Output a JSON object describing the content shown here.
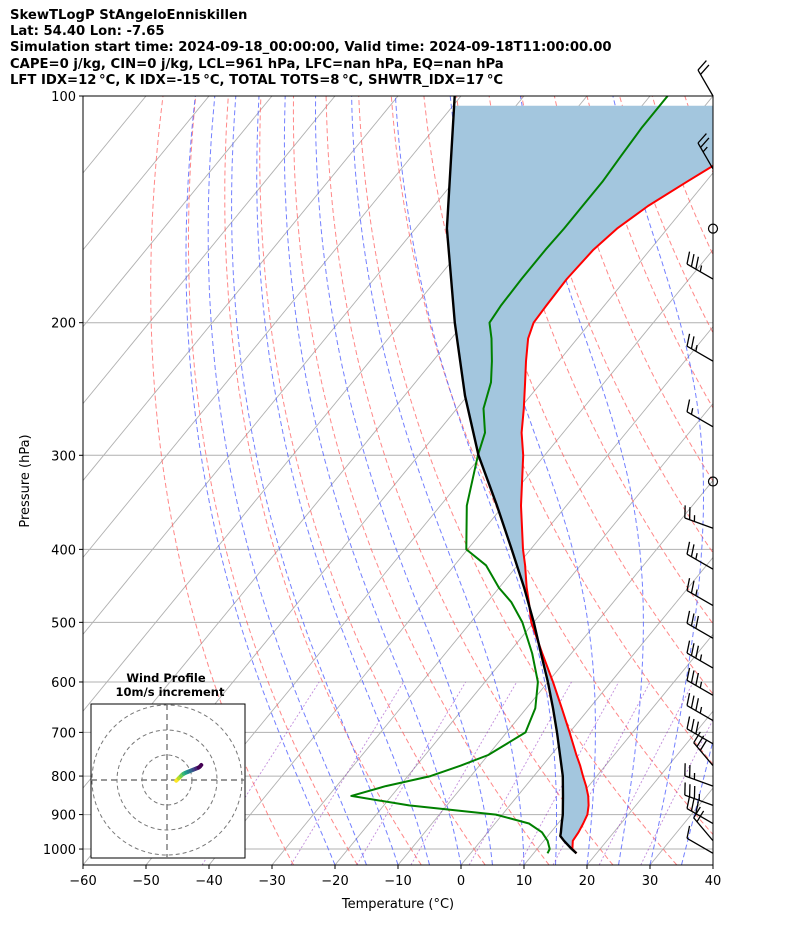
{
  "header": {
    "lines": [
      "SkewTLogP StAngeloEnniskillen",
      "Lat: 54.40   Lon: -7.65",
      "Simulation start time: 2024-09-18_00:00:00, Valid time: 2024-09-18T11:00:00.00",
      "CAPE=0 j/kg, CIN=0 j/kg, LCL=961 hPa, LFC=nan hPa, EQ=nan hPa",
      "LFT IDX=12$^\\circ$C, K IDX=-15$^\\circ$C, TOTAL TOTS=8$^\\circ$C, SHWTR_IDX=17$^\\circ$C"
    ],
    "display_lines": [
      "SkewTLogP StAngeloEnniskillen",
      "Lat: 54.40   Lon: -7.65",
      "Simulation start time: 2024-09-18_00:00:00, Valid time: 2024-09-18T11:00:00.00",
      "CAPE=0 j/kg, CIN=0 j/kg, LCL=961 hPa, LFC=nan hPa, EQ=nan hPa",
      "LFT IDX=12 °C, K IDX=-15 °C, TOTAL TOTS=8 °C, SHWTR_IDX=17 °C"
    ]
  },
  "chart_data": {
    "type": "line",
    "subtype": "skew-t log-p",
    "xlabel": "Temperature (°C)",
    "ylabel": "Pressure (hPa)",
    "xlim": [
      -60,
      40
    ],
    "ylim": [
      1050,
      100
    ],
    "y_scale": "log",
    "x_ticks": [
      -60,
      -50,
      -40,
      -30,
      -20,
      -10,
      0,
      10,
      20,
      30,
      40
    ],
    "x_tick_labels": [
      "−60",
      "−50",
      "−40",
      "−30",
      "−20",
      "−10",
      "0",
      "10",
      "20",
      "30",
      "40"
    ],
    "y_ticks": [
      1000,
      900,
      800,
      700,
      600,
      500,
      400,
      300,
      200,
      100
    ],
    "y_tick_labels": [
      "1000",
      "900",
      "800",
      "700",
      "600",
      "500",
      "400",
      "300",
      "200",
      "100"
    ],
    "grid": true,
    "colors": {
      "temperature": "#ff0000",
      "dewpoint": "#008000",
      "parcel": "#000000",
      "shading": "#a3c6de",
      "dry_adiabats": "#ff6060",
      "moist_adiabats": "#5060ff",
      "mixing_ratio": "#9030c0",
      "isotherms": "#b0b0b0"
    },
    "series": [
      {
        "role": "temperature",
        "pressure": [
          1013,
          1000,
          975,
          950,
          925,
          900,
          875,
          850,
          825,
          800,
          775,
          750,
          700,
          650,
          600,
          550,
          500,
          470,
          450,
          420,
          400,
          350,
          300,
          280,
          260,
          240,
          225,
          210,
          200,
          190,
          175,
          160,
          150,
          140,
          130,
          120,
          110,
          100
        ],
        "temperature": [
          16.8,
          15.6,
          14.6,
          14.4,
          14.0,
          13.5,
          12.5,
          11.2,
          9.6,
          7.8,
          6.0,
          4.0,
          0.0,
          -4.4,
          -9.2,
          -14.6,
          -20.4,
          -23.4,
          -25.6,
          -28.8,
          -31.2,
          -37.2,
          -43.4,
          -46.6,
          -49.4,
          -52.6,
          -55.2,
          -57.8,
          -59.0,
          -59.2,
          -59.4,
          -59.0,
          -58.0,
          -56.0,
          -53.0,
          -49.6,
          -46.0,
          -42.0
        ]
      },
      {
        "role": "dewpoint",
        "pressure": [
          1013,
          1000,
          975,
          950,
          925,
          900,
          875,
          850,
          825,
          800,
          775,
          750,
          700,
          650,
          600,
          550,
          500,
          470,
          450,
          420,
          400,
          350,
          300,
          280,
          260,
          240,
          225,
          210,
          200,
          190,
          175,
          160,
          150,
          140,
          130,
          120,
          110,
          100
        ],
        "temperature": [
          12.2,
          12.0,
          10.6,
          8.6,
          5.4,
          -1.0,
          -16.0,
          -26.4,
          -22.2,
          -16.4,
          -13.0,
          -10.0,
          -7.0,
          -8.6,
          -11.6,
          -16.2,
          -21.8,
          -26.2,
          -30.0,
          -35.0,
          -40.2,
          -45.8,
          -50.6,
          -52.4,
          -55.8,
          -58.0,
          -60.6,
          -63.6,
          -66.0,
          -66.4,
          -66.6,
          -66.6,
          -66.4,
          -66.4,
          -66.4,
          -66.8,
          -67.2,
          -67.2
        ]
      },
      {
        "role": "parcel",
        "pressure": [
          1013,
          1000,
          975,
          961,
          950,
          925,
          900,
          850,
          800,
          750,
          700,
          650,
          600,
          550,
          500,
          450,
          400,
          350,
          300,
          250,
          200,
          150,
          100
        ],
        "temperature": [
          16.8,
          15.5,
          13.2,
          12.0,
          11.6,
          10.6,
          9.6,
          7.2,
          4.6,
          1.4,
          -2.0,
          -5.8,
          -10.0,
          -14.8,
          -20.0,
          -26.0,
          -33.0,
          -41.0,
          -50.5,
          -60.4,
          -71.5,
          -85.0,
          -101.0
        ]
      }
    ],
    "wind_barbs": {
      "pressure": [
        1013,
        975,
        925,
        875,
        825,
        775,
        725,
        675,
        625,
        575,
        525,
        475,
        425,
        375,
        325,
        275,
        225,
        175,
        150,
        125,
        100
      ],
      "speed_kt": [
        10,
        20,
        30,
        35,
        25,
        30,
        30,
        35,
        35,
        35,
        30,
        25,
        25,
        25,
        0,
        15,
        25,
        35,
        0,
        25,
        20
      ],
      "direction_deg": [
        300,
        320,
        300,
        290,
        290,
        320,
        300,
        300,
        300,
        300,
        300,
        300,
        300,
        290,
        0,
        300,
        300,
        300,
        0,
        330,
        330
      ]
    },
    "inset": {
      "title": "Wind Profile",
      "subtitle": "10m/s increment",
      "hodograph": {
        "u": [
          -0.5,
          -1.0,
          -1.5,
          -2.0,
          -2.5,
          -3.0,
          -3.5,
          -4.0,
          -4.5,
          -5.0,
          -5.5,
          -6.0,
          -6.5,
          -7.0,
          -7.5,
          -8.0,
          -8.5,
          -9.0,
          -9.5,
          -10.0,
          -10.5
        ],
        "v": [
          4.5,
          5.0,
          5.5,
          6.0,
          6.5,
          7.0,
          7.3,
          7.6,
          7.8,
          8.0,
          8.2,
          8.4,
          8.6,
          8.8,
          9.0,
          9.2,
          9.4,
          9.6,
          9.8,
          10.2,
          10.8
        ]
      }
    }
  }
}
